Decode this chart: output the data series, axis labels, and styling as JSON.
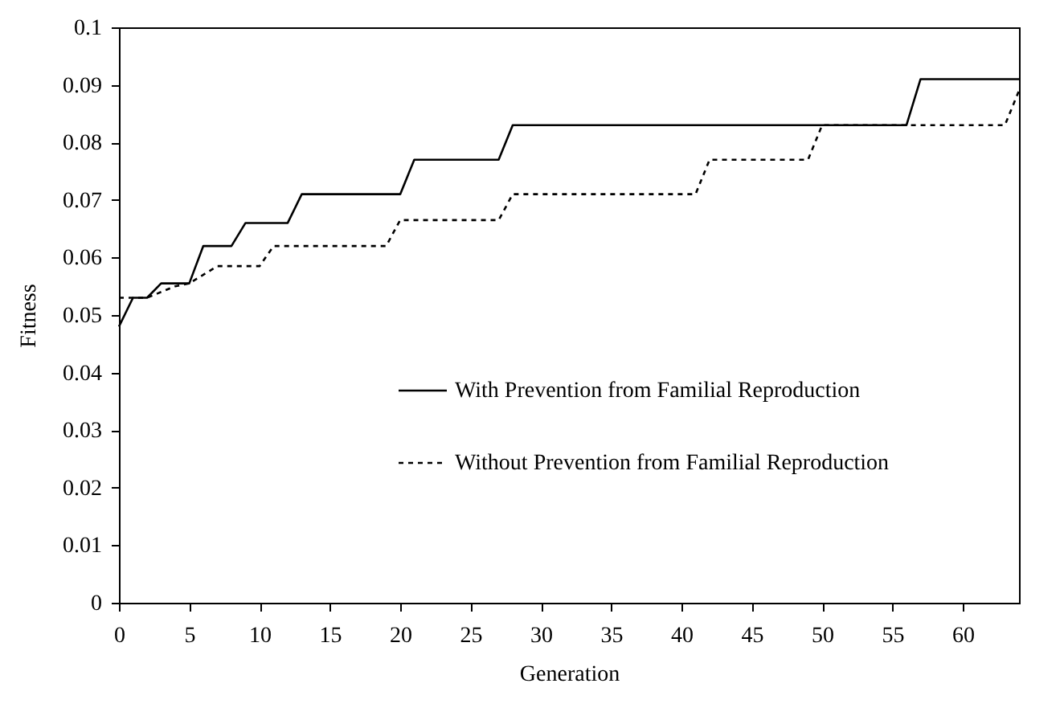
{
  "chart_data": {
    "type": "line",
    "xlabel": "Generation",
    "ylabel": "Fitness",
    "xlim": [
      0,
      64
    ],
    "xticks": [
      0,
      5,
      10,
      15,
      20,
      25,
      30,
      35,
      40,
      45,
      50,
      55,
      60
    ],
    "ylim": [
      0,
      0.1
    ],
    "yticks": [
      0,
      0.01,
      0.02,
      0.03,
      0.04,
      0.05,
      0.06,
      0.07,
      0.08,
      0.09,
      0.1
    ],
    "grid": false,
    "legend": "bottom right",
    "marker": "none",
    "series": [
      {
        "name": "With Prevention from Familial Reproduction",
        "color": "#000000",
        "line_style": "solid",
        "x": [
          0,
          1,
          2,
          3,
          5,
          6,
          8,
          9,
          12,
          13,
          20,
          21,
          27,
          28,
          56,
          57,
          64
        ],
        "values": [
          0.048,
          0.053,
          0.053,
          0.0555,
          0.0555,
          0.062,
          0.062,
          0.066,
          0.066,
          0.071,
          0.071,
          0.077,
          0.077,
          0.083,
          0.083,
          0.091,
          0.091
        ]
      },
      {
        "name": "Without Prevention from Familial Reproduction",
        "color": "#000000",
        "line_style": "dashed",
        "x": [
          0,
          2,
          4,
          5,
          7,
          10,
          11,
          19,
          20,
          27,
          28,
          41,
          42,
          49,
          50,
          63,
          64
        ],
        "values": [
          0.053,
          0.053,
          0.055,
          0.0555,
          0.0585,
          0.0585,
          0.062,
          0.062,
          0.0665,
          0.0665,
          0.071,
          0.071,
          0.077,
          0.077,
          0.083,
          0.083,
          0.089
        ]
      }
    ]
  }
}
